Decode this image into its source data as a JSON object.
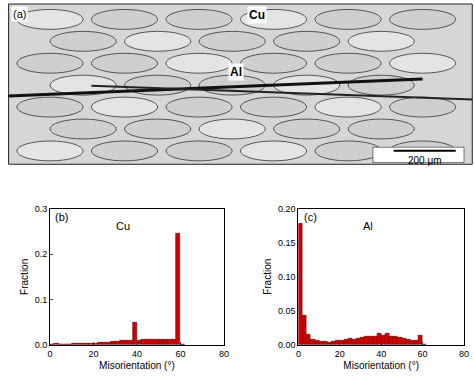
{
  "image_panel": {
    "label": "(a)",
    "labels": [
      "Cu",
      "Al"
    ],
    "scale_bar": "200 μm"
  },
  "chart_data": [
    {
      "type": "bar",
      "title": "Cu",
      "annotations": [
        "(b)"
      ],
      "x_label": "Misorientation (°)",
      "y_label": "Fraction",
      "bins": [
        0,
        2,
        4,
        6,
        8,
        10,
        12,
        14,
        16,
        18,
        20,
        22,
        24,
        26,
        28,
        30,
        32,
        34,
        36,
        38,
        40,
        42,
        44,
        46,
        48,
        50,
        52,
        54,
        56,
        58,
        60,
        62
      ],
      "values": [
        0,
        0.003,
        0.001,
        0.001,
        0.001,
        0.002,
        0.002,
        0.002,
        0.003,
        0.003,
        0.004,
        0.005,
        0.005,
        0.006,
        0.007,
        0.008,
        0.009,
        0.009,
        0.01,
        0.05,
        0.01,
        0.011,
        0.011,
        0.012,
        0.012,
        0.012,
        0.012,
        0.011,
        0.012,
        0.245,
        0
      ],
      "color": "#d40000",
      "xlim": [
        0,
        80
      ],
      "xticks": [
        0,
        20,
        40,
        60,
        80
      ],
      "ylim": [
        0,
        0.3
      ],
      "yticks": [
        {
          "value": 0,
          "label": "0.0"
        },
        {
          "value": 0.1,
          "label": "0.1"
        },
        {
          "value": 0.2,
          "label": "0.2"
        },
        {
          "value": 0.3,
          "label": "0.3"
        }
      ]
    },
    {
      "type": "bar",
      "title": "Al",
      "annotations": [
        "(c)"
      ],
      "x_label": "Misorientation (°)",
      "y_label": "Fraction",
      "bins": [
        0,
        2,
        4,
        6,
        8,
        10,
        12,
        14,
        16,
        18,
        20,
        22,
        24,
        26,
        28,
        30,
        32,
        34,
        36,
        38,
        40,
        42,
        44,
        46,
        48,
        50,
        52,
        54,
        56,
        58,
        60,
        62
      ],
      "values": [
        0.178,
        0.043,
        0.015,
        0.008,
        0.006,
        0.005,
        0.005,
        0.004,
        0.005,
        0.006,
        0.006,
        0.008,
        0.009,
        0.008,
        0.01,
        0.011,
        0.013,
        0.012,
        0.013,
        0.016,
        0.014,
        0.016,
        0.013,
        0.012,
        0.011,
        0.01,
        0.008,
        0.007,
        0.007,
        0.014,
        0
      ],
      "color": "#d40000",
      "xlim": [
        0,
        80
      ],
      "xticks": [
        0,
        20,
        40,
        60,
        80
      ],
      "ylim": [
        0,
        0.2
      ],
      "yticks": [
        {
          "value": 0,
          "label": "0.00"
        },
        {
          "value": 0.05,
          "label": "0.05"
        },
        {
          "value": 0.1,
          "label": "0.10"
        },
        {
          "value": 0.15,
          "label": "0.15"
        },
        {
          "value": 0.2,
          "label": "0.20"
        }
      ]
    }
  ]
}
